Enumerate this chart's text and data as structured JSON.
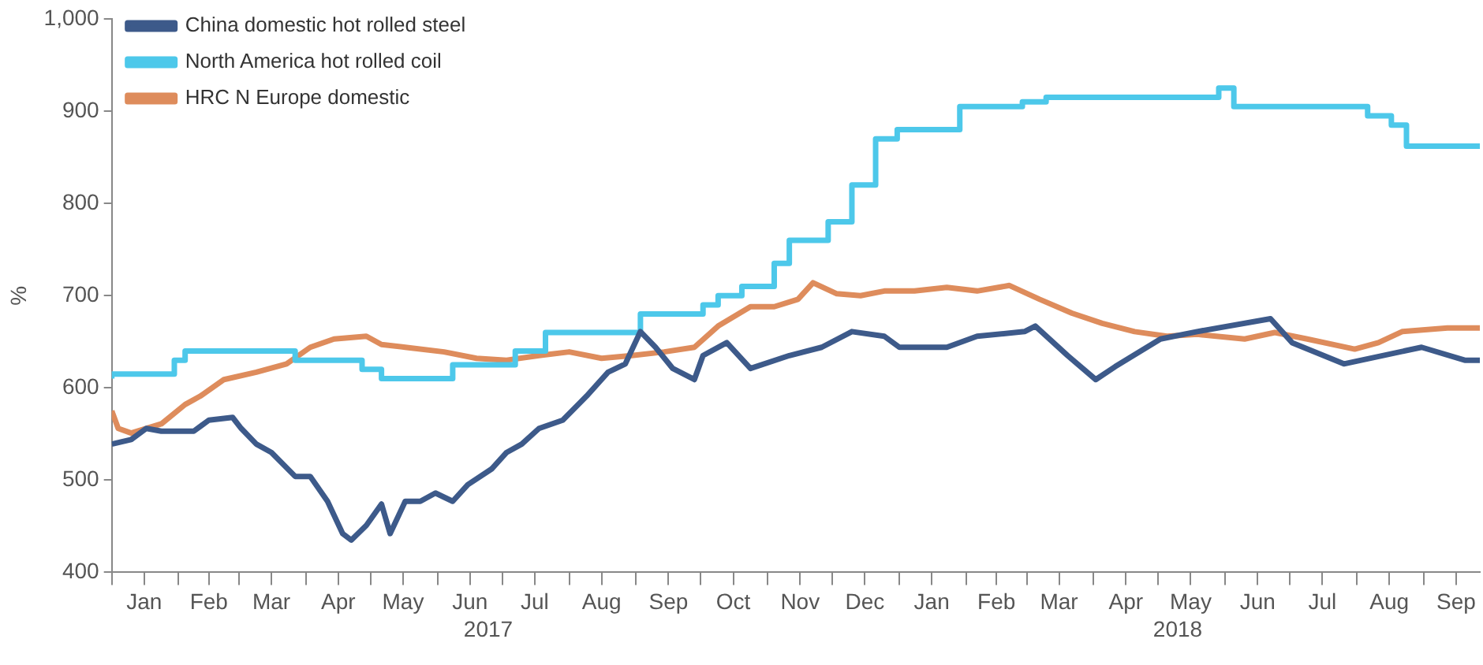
{
  "chart_data": {
    "type": "line",
    "ylabel": "%",
    "xlim": [
      "2017-01-01",
      "2018-09-27"
    ],
    "ylim": [
      400,
      1000
    ],
    "yticks": [
      400,
      500,
      600,
      700,
      800,
      900,
      {
        "value": 1000,
        "label": "1,000"
      }
    ],
    "xticks": [
      {
        "value": "2017-01-01",
        "label": null
      },
      {
        "value": "2017-01-16",
        "label": "Jan"
      },
      {
        "value": "2017-02-01",
        "label": null
      },
      {
        "value": "2017-02-15",
        "label": "Feb"
      },
      {
        "value": "2017-03-01",
        "label": null
      },
      {
        "value": "2017-03-16",
        "label": "Mar"
      },
      {
        "value": "2017-04-01",
        "label": null
      },
      {
        "value": "2017-04-16",
        "label": "Apr"
      },
      {
        "value": "2017-05-01",
        "label": null
      },
      {
        "value": "2017-05-16",
        "label": "May"
      },
      {
        "value": "2017-06-01",
        "label": null
      },
      {
        "value": "2017-06-16",
        "label": "Jun"
      },
      {
        "value": "2017-07-01",
        "label": null
      },
      {
        "value": "2017-07-16",
        "label": "Jul"
      },
      {
        "value": "2017-08-01",
        "label": null
      },
      {
        "value": "2017-08-16",
        "label": "Aug"
      },
      {
        "value": "2017-09-01",
        "label": null
      },
      {
        "value": "2017-09-16",
        "label": "Sep"
      },
      {
        "value": "2017-10-01",
        "label": null
      },
      {
        "value": "2017-10-16",
        "label": "Oct"
      },
      {
        "value": "2017-11-01",
        "label": null
      },
      {
        "value": "2017-11-16",
        "label": "Nov"
      },
      {
        "value": "2017-12-01",
        "label": null
      },
      {
        "value": "2017-12-16",
        "label": "Dec"
      },
      {
        "value": "2018-01-01",
        "label": null
      },
      {
        "value": "2018-01-16",
        "label": "Jan"
      },
      {
        "value": "2018-02-01",
        "label": null
      },
      {
        "value": "2018-02-15",
        "label": "Feb"
      },
      {
        "value": "2018-03-01",
        "label": null
      },
      {
        "value": "2018-03-16",
        "label": "Mar"
      },
      {
        "value": "2018-04-01",
        "label": null
      },
      {
        "value": "2018-04-16",
        "label": "Apr"
      },
      {
        "value": "2018-05-01",
        "label": null
      },
      {
        "value": "2018-05-16",
        "label": "May"
      },
      {
        "value": "2018-06-01",
        "label": null
      },
      {
        "value": "2018-06-16",
        "label": "Jun"
      },
      {
        "value": "2018-07-01",
        "label": null
      },
      {
        "value": "2018-07-16",
        "label": "Jul"
      },
      {
        "value": "2018-08-01",
        "label": null
      },
      {
        "value": "2018-08-16",
        "label": "Aug"
      },
      {
        "value": "2018-09-01",
        "label": null
      },
      {
        "value": "2018-09-16",
        "label": "Sep"
      }
    ],
    "annotations": [
      "2017",
      "2018"
    ],
    "legend": "top left",
    "grid": false,
    "series": [
      {
        "name": "China domestic hot rolled steel",
        "color": "#3d5a8a",
        "x": [
          "2017-01-01",
          "2017-01-10",
          "2017-01-17",
          "2017-01-24",
          "2017-02-08",
          "2017-02-15",
          "2017-02-26",
          "2017-03-02",
          "2017-03-09",
          "2017-03-16",
          "2017-03-27",
          "2017-04-03",
          "2017-04-11",
          "2017-04-18",
          "2017-04-22",
          "2017-04-29",
          "2017-05-06",
          "2017-05-10",
          "2017-05-17",
          "2017-05-24",
          "2017-05-31",
          "2017-06-08",
          "2017-06-15",
          "2017-06-26",
          "2017-07-03",
          "2017-07-10",
          "2017-07-18",
          "2017-07-29",
          "2017-08-09",
          "2017-08-19",
          "2017-08-27",
          "2017-09-03",
          "2017-09-10",
          "2017-09-18",
          "2017-09-28",
          "2017-10-02",
          "2017-10-13",
          "2017-10-24",
          "2017-11-11",
          "2017-11-26",
          "2017-12-10",
          "2017-12-25",
          "2018-01-01",
          "2018-01-23",
          "2018-02-06",
          "2018-02-28",
          "2018-03-05",
          "2018-03-20",
          "2018-04-02",
          "2018-04-11",
          "2018-05-02",
          "2018-05-19",
          "2018-06-22",
          "2018-07-02",
          "2018-07-26",
          "2018-08-31",
          "2018-09-20",
          "2018-09-27"
        ],
        "values": [
          539,
          544,
          556,
          553,
          553,
          565,
          568,
          556,
          539,
          530,
          504,
          504,
          477,
          442,
          435,
          451,
          474,
          442,
          477,
          477,
          486,
          477,
          495,
          512,
          530,
          539,
          556,
          565,
          591,
          617,
          626,
          661,
          644,
          621,
          609,
          635,
          649,
          621,
          635,
          644,
          661,
          656,
          644,
          644,
          656,
          661,
          667,
          635,
          609,
          623,
          653,
          661,
          675,
          649,
          626,
          644,
          630,
          630
        ]
      },
      {
        "name": "North America hot rolled coil",
        "type": "step",
        "color": "#4dc8ea",
        "x": [
          "2017-01-01",
          "2017-01-30",
          "2017-02-04",
          "2017-03-27",
          "2017-04-27",
          "2017-05-06",
          "2017-06-08",
          "2017-07-07",
          "2017-07-21",
          "2017-09-03",
          "2017-10-02",
          "2017-10-09",
          "2017-10-20",
          "2017-11-04",
          "2017-11-11",
          "2017-11-29",
          "2017-12-10",
          "2017-12-21",
          "2017-12-31",
          "2018-01-29",
          "2018-02-27",
          "2018-03-10",
          "2018-05-29",
          "2018-06-05",
          "2018-08-06",
          "2018-08-17",
          "2018-08-24",
          "2018-09-22",
          "2018-09-27"
        ],
        "values": [
          610,
          615,
          630,
          640,
          630,
          620,
          610,
          625,
          640,
          660,
          680,
          690,
          700,
          710,
          735,
          760,
          780,
          820,
          870,
          880,
          905,
          910,
          915,
          925,
          905,
          895,
          885,
          862,
          862
        ]
      },
      {
        "name": "HRC N Europe domestic",
        "color": "#de8c5c",
        "x": [
          "2017-01-01",
          "2017-01-04",
          "2017-01-10",
          "2017-01-24",
          "2017-02-04",
          "2017-02-11",
          "2017-02-22",
          "2017-03-09",
          "2017-03-23",
          "2017-04-03",
          "2017-04-14",
          "2017-04-29",
          "2017-05-06",
          "2017-05-17",
          "2017-06-04",
          "2017-06-19",
          "2017-07-03",
          "2017-07-18",
          "2017-08-01",
          "2017-08-16",
          "2017-08-30",
          "2017-09-14",
          "2017-09-28",
          "2017-10-09",
          "2017-10-24",
          "2017-11-04",
          "2017-11-15",
          "2017-11-22",
          "2017-12-03",
          "2017-12-14",
          "2017-12-25",
          "2018-01-08",
          "2018-01-23",
          "2018-02-06",
          "2018-02-21",
          "2018-03-07",
          "2018-03-22",
          "2018-04-05",
          "2018-04-20",
          "2018-05-05",
          "2018-05-19",
          "2018-06-10",
          "2018-06-24",
          "2018-07-09",
          "2018-07-31",
          "2018-08-11",
          "2018-08-22",
          "2018-09-12",
          "2018-09-27"
        ],
        "values": [
          575,
          556,
          551,
          561,
          582,
          591,
          609,
          617,
          626,
          644,
          653,
          656,
          647,
          644,
          639,
          632,
          630,
          635,
          639,
          632,
          635,
          639,
          644,
          667,
          688,
          688,
          696,
          714,
          702,
          700,
          705,
          705,
          709,
          705,
          711,
          696,
          681,
          670,
          661,
          656,
          658,
          653,
          660,
          653,
          642,
          649,
          661,
          665,
          665
        ]
      }
    ]
  }
}
